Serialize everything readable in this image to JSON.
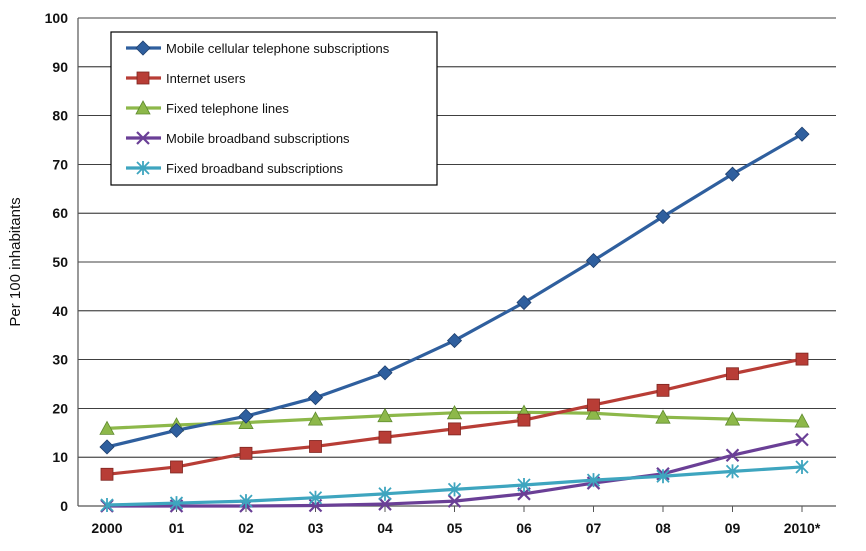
{
  "chart_data": {
    "type": "line",
    "title": "",
    "xlabel": "",
    "ylabel": "Per 100 inhabitants",
    "ylim": [
      0,
      100
    ],
    "yticks": [
      0,
      10,
      20,
      30,
      40,
      50,
      60,
      70,
      80,
      90,
      100
    ],
    "grid": "horizontal",
    "legend_position": "top-left",
    "categories": [
      "2000",
      "01",
      "02",
      "03",
      "04",
      "05",
      "06",
      "07",
      "08",
      "09",
      "2010*"
    ],
    "series": [
      {
        "name": "Mobile cellular telephone subscriptions",
        "color": "#2f5f9e",
        "marker": "diamond",
        "values": [
          12.1,
          15.5,
          18.4,
          22.2,
          27.3,
          33.9,
          41.7,
          50.3,
          59.3,
          68.0,
          76.2
        ]
      },
      {
        "name": "Internet users",
        "color": "#b83d36",
        "marker": "square",
        "values": [
          6.5,
          8.0,
          10.8,
          12.2,
          14.1,
          15.8,
          17.6,
          20.7,
          23.7,
          27.1,
          30.1
        ]
      },
      {
        "name": "Fixed telephone lines",
        "color": "#8db84a",
        "marker": "triangle",
        "values": [
          15.9,
          16.6,
          17.1,
          17.8,
          18.5,
          19.1,
          19.2,
          19.0,
          18.2,
          17.8,
          17.4
        ]
      },
      {
        "name": "Mobile broadband subscriptions",
        "color": "#6a3f96",
        "marker": "x",
        "values": [
          0.0,
          0.0,
          0.0,
          0.1,
          0.4,
          1.0,
          2.5,
          4.7,
          6.6,
          10.4,
          13.6
        ]
      },
      {
        "name": "Fixed broadband subscriptions",
        "color": "#3ea5bf",
        "marker": "star",
        "values": [
          0.2,
          0.6,
          1.0,
          1.7,
          2.5,
          3.4,
          4.3,
          5.3,
          6.1,
          7.1,
          8.0
        ]
      }
    ]
  }
}
